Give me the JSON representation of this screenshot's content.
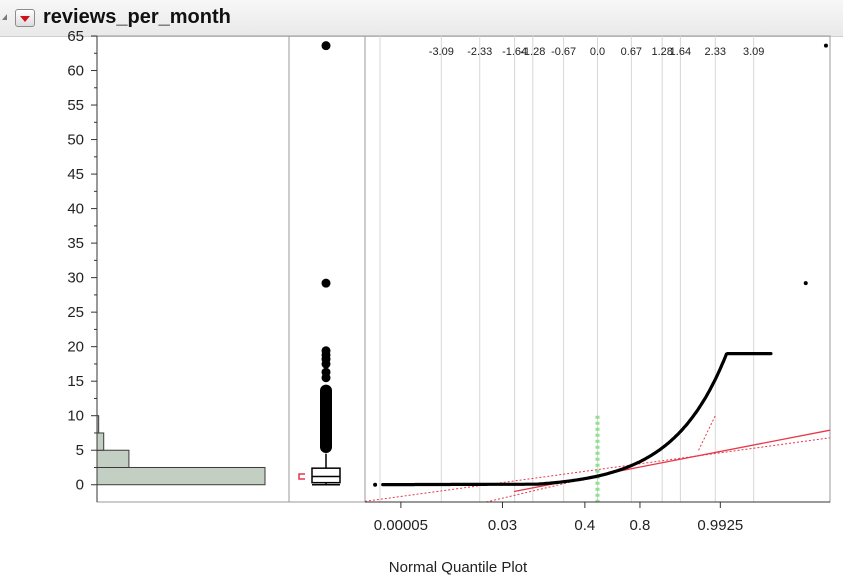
{
  "header": {
    "title": "reviews_per_month",
    "disclosure_icon": "disclosure-triangle-icon",
    "menu_icon": "red-triangle-menu-icon"
  },
  "chart_data": {
    "type": "distribution",
    "variable": "reviews_per_month",
    "ylim": [
      -2.5,
      65
    ],
    "y_ticks": [
      0,
      5,
      10,
      15,
      20,
      25,
      30,
      35,
      40,
      45,
      50,
      55,
      60,
      65
    ],
    "histogram": {
      "bins": [
        {
          "from": 0,
          "to": 2.5,
          "rel": 1.0
        },
        {
          "from": 2.5,
          "to": 5,
          "rel": 0.19
        },
        {
          "from": 5,
          "to": 7.5,
          "rel": 0.04
        },
        {
          "from": 7.5,
          "to": 10,
          "rel": 0.01
        }
      ]
    },
    "boxplot": {
      "q1": 0.3,
      "median": 1.2,
      "q3": 2.4,
      "lower_whisker": 0,
      "upper_whisker": 4.5,
      "outliers_dense_from": 4.6,
      "outliers_dense_to": 14.5,
      "outliers": [
        15.5,
        16.3,
        17.5,
        18.2,
        18.8,
        19.4,
        29.2,
        63.6
      ]
    },
    "quantile_plot": {
      "xlabel": "Normal Quantile Plot",
      "bottom_ticks": [
        "0.00005",
        "0.03",
        "0.4",
        "0.8",
        "0.9925"
      ],
      "bottom_tick_z": [
        -3.89,
        -1.88,
        -0.25,
        0.84,
        2.43
      ],
      "top_ticks": [
        "-3.09",
        "-2.33",
        "-1.64",
        "-1.28",
        "-0.67",
        "0.0",
        "0.67",
        "1.28",
        "1.64",
        "2.33",
        "3.09"
      ],
      "top_tick_z": [
        -3.09,
        -2.33,
        -1.64,
        -1.28,
        -0.67,
        0.0,
        0.67,
        1.28,
        1.64,
        2.33,
        3.09
      ],
      "z_range": [
        -4.6,
        4.6
      ],
      "fit_line": {
        "intercept": 1.37,
        "slope": 1.42
      },
      "fit_slope_upper": 1.55,
      "fit_slope_lower": 1.18,
      "dashed_marker_z": 0.0,
      "dashed_marker_y": [
        -2.5,
        10
      ],
      "red_dash_z": [
        2.0,
        2.33
      ],
      "red_dash_y": [
        5.0,
        10.0
      ]
    },
    "colors": {
      "histogram_fill": "#c4cfc4",
      "histogram_stroke": "#3a3a3a",
      "points": "#000000",
      "fit_line": "#e8374a",
      "marker": "#8fe08f",
      "grid": "#d6d6d6"
    }
  }
}
